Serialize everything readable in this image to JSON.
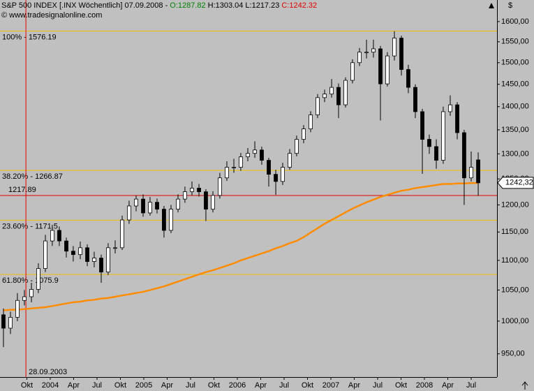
{
  "chart_data": {
    "type": "candlestick",
    "title": "S&P 500 INDEX [.INX  Wöchentlich] 07.09.2008 -",
    "open_label": "O:1287.82",
    "high_label": "H:1303.04",
    "low_label": "L:1217.23",
    "close_label": "C:1242.32",
    "copyright": "© www.tradesignalonline.com",
    "currency": "$",
    "x": [
      2003.5,
      2003.575,
      2003.649,
      2003.724,
      2003.799,
      2003.873,
      2003.948,
      2004.022,
      2004.097,
      2004.172,
      2004.246,
      2004.321,
      2004.396,
      2004.47,
      2004.545,
      2004.619,
      2004.694,
      2004.769,
      2004.843,
      2004.918,
      2004.993,
      2005.067,
      2005.142,
      2005.216,
      2005.291,
      2005.366,
      2005.44,
      2005.515,
      2005.59,
      2005.664,
      2005.739,
      2005.813,
      2005.888,
      2005.963,
      2006.037,
      2006.112,
      2006.187,
      2006.261,
      2006.336,
      2006.411,
      2006.485,
      2006.56,
      2006.634,
      2006.709,
      2006.784,
      2006.858,
      2006.933,
      2007.008,
      2007.082,
      2007.157,
      2007.231,
      2007.306,
      2007.381,
      2007.455,
      2007.53,
      2007.604,
      2007.679,
      2007.754,
      2007.828,
      2007.903,
      2007.978,
      2008.052,
      2008.127,
      2008.201,
      2008.276,
      2008.351,
      2008.425,
      2008.5,
      2008.575
    ],
    "open": [
      1010,
      989,
      1006,
      1033,
      1039,
      1051,
      1086,
      1134,
      1153,
      1134,
      1116,
      1110,
      1122,
      1098,
      1104,
      1080,
      1122,
      1122,
      1172,
      1198,
      1211,
      1185,
      1205,
      1192,
      1153,
      1192,
      1211,
      1225,
      1232,
      1225,
      1192,
      1218,
      1252,
      1273,
      1273,
      1294,
      1301,
      1308,
      1287,
      1259,
      1245,
      1273,
      1301,
      1330,
      1352,
      1382,
      1420,
      1428,
      1443,
      1404,
      1459,
      1500,
      1525,
      1525,
      1533,
      1451,
      1516,
      1559,
      1484,
      1443,
      1389,
      1330,
      1315,
      1287,
      1389,
      1404,
      1344,
      1252,
      1287.82
    ],
    "high": [
      1020,
      1015,
      1045,
      1050,
      1062,
      1095,
      1145,
      1163,
      1160,
      1140,
      1125,
      1133,
      1128,
      1115,
      1110,
      1130,
      1135,
      1180,
      1208,
      1218,
      1220,
      1215,
      1212,
      1198,
      1200,
      1220,
      1235,
      1245,
      1240,
      1230,
      1226,
      1262,
      1285,
      1290,
      1302,
      1312,
      1326,
      1315,
      1292,
      1268,
      1282,
      1310,
      1338,
      1360,
      1390,
      1428,
      1438,
      1462,
      1452,
      1466,
      1508,
      1535,
      1555,
      1555,
      1540,
      1525,
      1576,
      1565,
      1495,
      1450,
      1395,
      1340,
      1330,
      1400,
      1425,
      1410,
      1350,
      1305,
      1303.04
    ],
    "low": [
      960,
      980,
      1000,
      1025,
      1030,
      1045,
      1080,
      1125,
      1125,
      1105,
      1098,
      1102,
      1090,
      1088,
      1062,
      1075,
      1112,
      1118,
      1165,
      1188,
      1178,
      1180,
      1184,
      1140,
      1148,
      1186,
      1204,
      1218,
      1216,
      1170,
      1186,
      1212,
      1246,
      1262,
      1266,
      1285,
      1292,
      1278,
      1235,
      1219,
      1238,
      1268,
      1295,
      1322,
      1345,
      1375,
      1410,
      1420,
      1375,
      1398,
      1452,
      1492,
      1510,
      1512,
      1370,
      1445,
      1505,
      1470,
      1430,
      1375,
      1260,
      1300,
      1270,
      1280,
      1380,
      1330,
      1200,
      1245,
      1217.23
    ],
    "close": [
      989,
      1006,
      1033,
      1039,
      1051,
      1086,
      1134,
      1153,
      1134,
      1116,
      1110,
      1122,
      1098,
      1104,
      1080,
      1122,
      1122,
      1172,
      1198,
      1211,
      1185,
      1205,
      1192,
      1153,
      1192,
      1211,
      1225,
      1232,
      1225,
      1192,
      1218,
      1252,
      1273,
      1273,
      1294,
      1301,
      1308,
      1287,
      1259,
      1245,
      1273,
      1301,
      1330,
      1352,
      1382,
      1420,
      1428,
      1443,
      1404,
      1459,
      1500,
      1525,
      1525,
      1533,
      1451,
      1516,
      1559,
      1484,
      1443,
      1389,
      1330,
      1315,
      1287,
      1389,
      1404,
      1344,
      1252,
      1273,
      1242.32
    ],
    "up_color": "#ffffff",
    "down_color": "#000000",
    "moving_average": {
      "color": "#ff8c00",
      "values": [
        1017,
        1018,
        1018,
        1019,
        1020,
        1021,
        1022,
        1024,
        1026,
        1028,
        1030,
        1031,
        1033,
        1034,
        1036,
        1037,
        1039,
        1041,
        1043,
        1045,
        1047,
        1050,
        1053,
        1056,
        1060,
        1064,
        1068,
        1072,
        1076,
        1080,
        1083,
        1087,
        1091,
        1095,
        1100,
        1104,
        1108,
        1112,
        1116,
        1121,
        1125,
        1130,
        1134,
        1141,
        1149,
        1157,
        1165,
        1172,
        1179,
        1186,
        1193,
        1199,
        1205,
        1210,
        1215,
        1219,
        1223,
        1227,
        1229,
        1232,
        1234,
        1236,
        1238,
        1240,
        1240,
        1241,
        1241,
        1242,
        1242
      ]
    },
    "levels": [
      {
        "value": 1576.19,
        "label": "100% - 1576.19"
      },
      {
        "value": 1266.87,
        "label": "38.20% - 1266.87"
      },
      {
        "value": 1171.5,
        "label": "23.60% - 1171.5"
      },
      {
        "value": 1075.9,
        "label": "61.80% - 1075.9"
      }
    ],
    "level_color": "#f0c000",
    "marker_line": {
      "value": 1217.89,
      "color": "#e00000"
    },
    "date_marker": {
      "value": 2003.74,
      "label": "28.09.2003",
      "color": "#e00000"
    },
    "last_price": {
      "value": 1242.32,
      "label": "1242,32"
    },
    "log_scale": true,
    "xlim": [
      2003.463,
      2008.776
    ],
    "ylim": [
      916,
      1655
    ],
    "xticks": [
      {
        "value": 2003.75,
        "label": "Okt"
      },
      2004,
      {
        "value": 2004.25,
        "label": "Apr"
      },
      {
        "value": 2004.5,
        "label": "Jul"
      },
      {
        "value": 2004.75,
        "label": "Okt"
      },
      2005,
      {
        "value": 2005.25,
        "label": "Apr"
      },
      {
        "value": 2005.5,
        "label": "Jul"
      },
      {
        "value": 2005.75,
        "label": "Okt"
      },
      2006,
      {
        "value": 2006.25,
        "label": "Apr"
      },
      {
        "value": 2006.5,
        "label": "Jul"
      },
      {
        "value": 2006.75,
        "label": "Okt"
      },
      2007,
      {
        "value": 2007.25,
        "label": "Apr"
      },
      {
        "value": 2007.5,
        "label": "Jul"
      },
      {
        "value": 2007.75,
        "label": "Okt"
      },
      2008,
      {
        "value": 2008.25,
        "label": "Apr"
      },
      {
        "value": 2008.5,
        "label": "Jul"
      }
    ],
    "yticks": [
      {
        "value": 950,
        "label": "950,00"
      },
      {
        "value": 1000,
        "label": "1000,00"
      },
      {
        "value": 1050,
        "label": "1050,00"
      },
      {
        "value": 1100,
        "label": "1100,00"
      },
      {
        "value": 1150,
        "label": "1150,00"
      },
      {
        "value": 1200,
        "label": "1200,00"
      },
      {
        "value": 1250,
        "label": "1250,00"
      },
      {
        "value": 1300,
        "label": "1300,00"
      },
      {
        "value": 1350,
        "label": "1350,00"
      },
      {
        "value": 1400,
        "label": "1400,00"
      },
      {
        "value": 1450,
        "label": "1450,00"
      },
      {
        "value": 1500,
        "label": "1500,00"
      },
      {
        "value": 1550,
        "label": "1550,00"
      },
      {
        "value": 1600,
        "label": "1600,00"
      }
    ]
  }
}
